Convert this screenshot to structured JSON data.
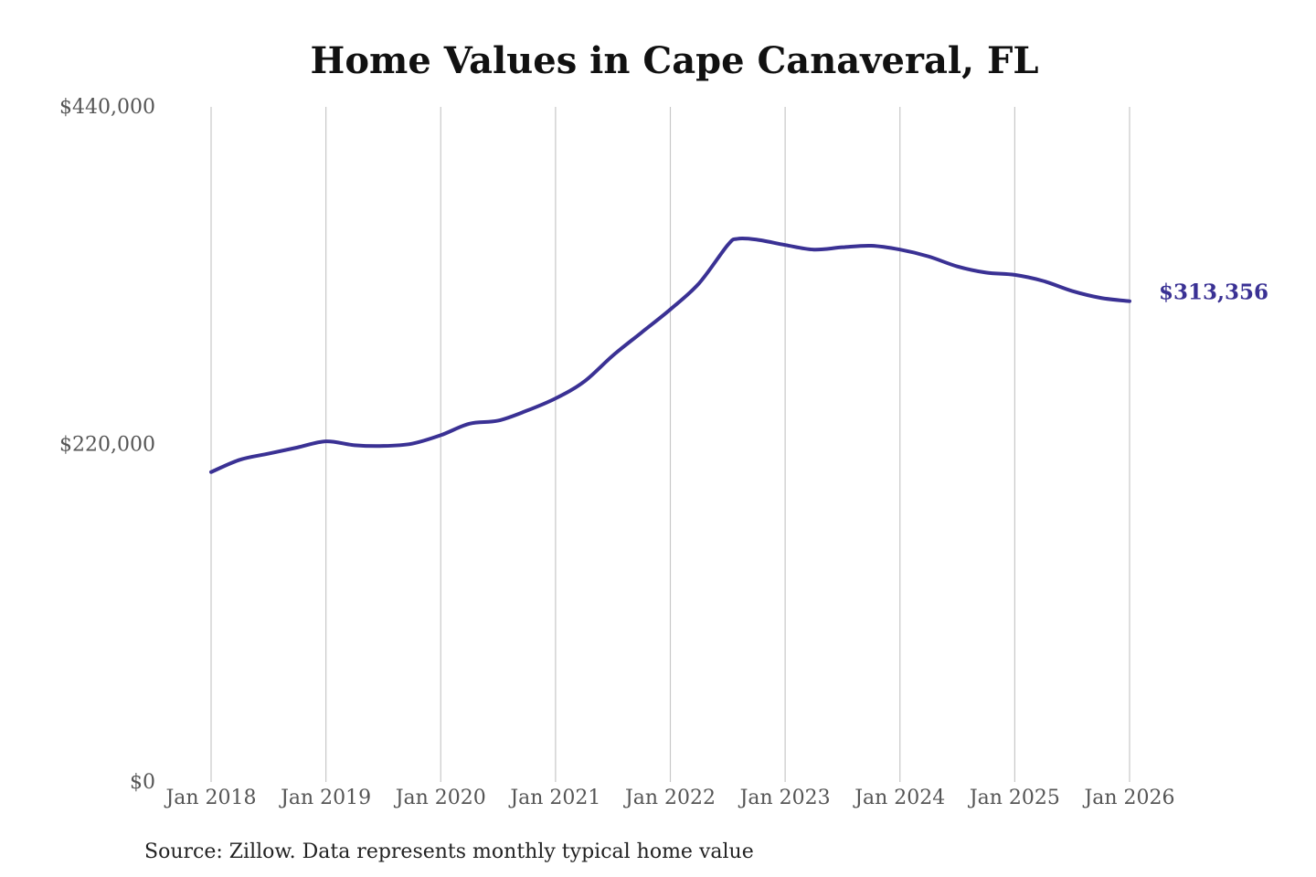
{
  "chart_data": {
    "type": "line",
    "title": "Home Values in Cape Canaveral, FL",
    "xlabel": "",
    "ylabel": "",
    "ylim": [
      0,
      440000
    ],
    "y_ticks": [
      {
        "value": 0,
        "label": "$0"
      },
      {
        "value": 220000,
        "label": "$220,000"
      },
      {
        "value": 440000,
        "label": "$440,000"
      }
    ],
    "x_ticks": [
      {
        "date": "2018-01",
        "label": "Jan 2018"
      },
      {
        "date": "2019-01",
        "label": "Jan 2019"
      },
      {
        "date": "2020-01",
        "label": "Jan 2020"
      },
      {
        "date": "2021-01",
        "label": "Jan 2021"
      },
      {
        "date": "2022-01",
        "label": "Jan 2022"
      },
      {
        "date": "2023-01",
        "label": "Jan 2023"
      },
      {
        "date": "2024-01",
        "label": "Jan 2024"
      },
      {
        "date": "2025-01",
        "label": "Jan 2025"
      },
      {
        "date": "2026-01",
        "label": "Jan 2026"
      }
    ],
    "xlim": [
      "2018-01",
      "2026-01"
    ],
    "grid": "vertical",
    "series": [
      {
        "color": "#3a3194",
        "end_label": "$313,356",
        "points": [
          {
            "x": "2018-01",
            "y": 202000
          },
          {
            "x": "2018-04",
            "y": 210000
          },
          {
            "x": "2018-07",
            "y": 214000
          },
          {
            "x": "2018-10",
            "y": 218000
          },
          {
            "x": "2019-01",
            "y": 222000
          },
          {
            "x": "2019-04",
            "y": 219500
          },
          {
            "x": "2019-07",
            "y": 219000
          },
          {
            "x": "2019-10",
            "y": 220500
          },
          {
            "x": "2020-01",
            "y": 226000
          },
          {
            "x": "2020-04",
            "y": 233500
          },
          {
            "x": "2020-07",
            "y": 235500
          },
          {
            "x": "2020-10",
            "y": 242000
          },
          {
            "x": "2021-01",
            "y": 250000
          },
          {
            "x": "2021-04",
            "y": 261000
          },
          {
            "x": "2021-07",
            "y": 278000
          },
          {
            "x": "2021-10",
            "y": 293000
          },
          {
            "x": "2022-01",
            "y": 308000
          },
          {
            "x": "2022-04",
            "y": 325000
          },
          {
            "x": "2022-07",
            "y": 350000
          },
          {
            "x": "2022-08",
            "y": 354000
          },
          {
            "x": "2022-10",
            "y": 353500
          },
          {
            "x": "2023-01",
            "y": 350000
          },
          {
            "x": "2023-04",
            "y": 347000
          },
          {
            "x": "2023-07",
            "y": 348500
          },
          {
            "x": "2023-10",
            "y": 349500
          },
          {
            "x": "2024-01",
            "y": 347000
          },
          {
            "x": "2024-04",
            "y": 342500
          },
          {
            "x": "2024-07",
            "y": 336000
          },
          {
            "x": "2024-10",
            "y": 332000
          },
          {
            "x": "2025-01",
            "y": 330500
          },
          {
            "x": "2025-04",
            "y": 326500
          },
          {
            "x": "2025-07",
            "y": 320000
          },
          {
            "x": "2025-10",
            "y": 315500
          },
          {
            "x": "2026-01",
            "y": 313356
          }
        ]
      }
    ],
    "source": "Source: Zillow. Data represents monthly typical home value"
  }
}
